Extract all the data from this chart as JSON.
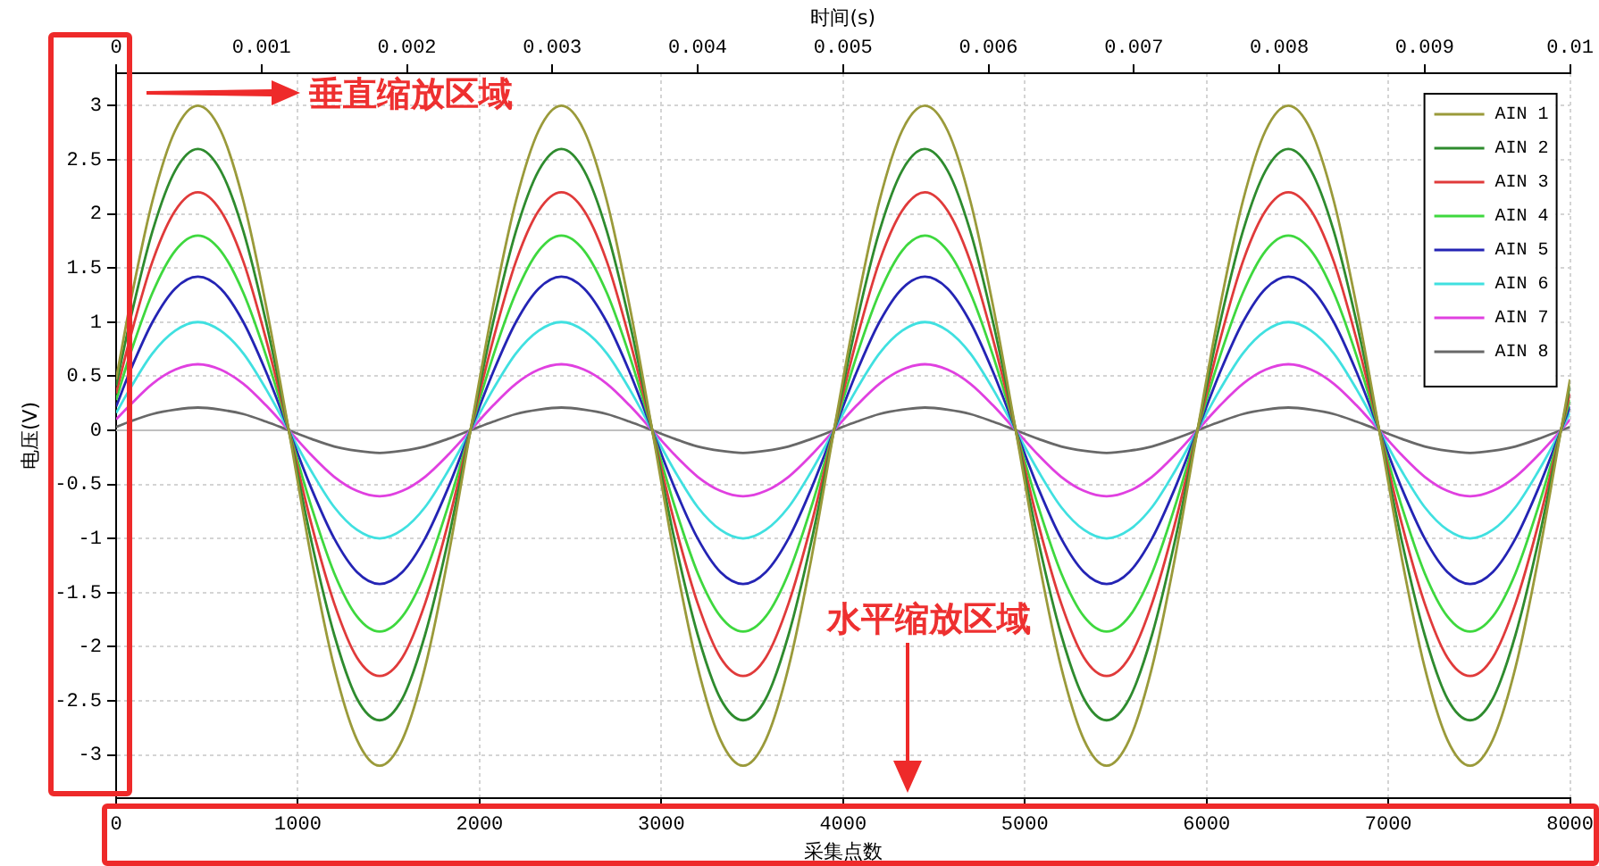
{
  "chart_data": {
    "type": "line",
    "x2label": "时间(s)",
    "xlabel": "采集点数",
    "ylabel": "电压(V)",
    "annotations": [
      "垂直缩放区域",
      "水平缩放区域"
    ],
    "x": [
      0,
      75,
      200,
      325,
      450,
      575,
      700,
      825,
      950,
      1075,
      1200,
      1325,
      1450,
      1575,
      1700,
      1825,
      1950,
      2075,
      2200,
      2325,
      2450,
      2575,
      2700,
      2825,
      2950,
      3075,
      3200,
      3325,
      3450,
      3575,
      3700,
      3825,
      3950,
      4075,
      4200,
      4325,
      4450,
      4575,
      4700,
      4825,
      4950,
      5075,
      5200,
      5325,
      5450,
      5575,
      5700,
      5825,
      5950,
      6075,
      6200,
      6325,
      6450,
      6575,
      6700,
      6825,
      6950,
      7075,
      7200,
      7325,
      7450,
      7575,
      7700,
      7825,
      7950,
      8000
    ],
    "series": [
      {
        "name": "AIN 1",
        "color": "#9a9a3a",
        "values": [
          0.47,
          1.15,
          2.12,
          2.77,
          3,
          2.77,
          2.12,
          1.15,
          0,
          -1.19,
          -2.19,
          -2.86,
          -3.1,
          -2.86,
          -2.19,
          -1.19,
          0,
          1.15,
          2.12,
          2.77,
          3,
          2.77,
          2.12,
          1.15,
          0,
          -1.19,
          -2.19,
          -2.86,
          -3.1,
          -2.86,
          -2.19,
          -1.19,
          0,
          1.15,
          2.12,
          2.77,
          3,
          2.77,
          2.12,
          1.15,
          0,
          -1.19,
          -2.19,
          -2.86,
          -3.1,
          -2.86,
          -2.19,
          -1.19,
          0,
          1.15,
          2.12,
          2.77,
          3,
          2.77,
          2.12,
          1.15,
          0,
          -1.19,
          -2.19,
          -2.86,
          -3.1,
          -2.86,
          -2.19,
          -1.19,
          0,
          0.47
        ]
      },
      {
        "name": "AIN 2",
        "color": "#2e8b2e",
        "values": [
          0.41,
          1,
          1.84,
          2.4,
          2.6,
          2.4,
          1.84,
          1,
          0,
          -1.03,
          -1.89,
          -2.48,
          -2.68,
          -2.48,
          -1.89,
          -1.03,
          0,
          1,
          1.84,
          2.4,
          2.6,
          2.4,
          1.84,
          1,
          0,
          -1.03,
          -1.89,
          -2.48,
          -2.68,
          -2.48,
          -1.89,
          -1.03,
          0,
          1,
          1.84,
          2.4,
          2.6,
          2.4,
          1.84,
          1,
          0,
          -1.03,
          -1.89,
          -2.48,
          -2.68,
          -2.48,
          -1.89,
          -1.03,
          0,
          1,
          1.84,
          2.4,
          2.6,
          2.4,
          1.84,
          1,
          0,
          -1.03,
          -1.89,
          -2.48,
          -2.68,
          -2.48,
          -1.89,
          -1.03,
          0,
          0.41
        ]
      },
      {
        "name": "AIN 3",
        "color": "#e03a3a",
        "values": [
          0.34,
          0.84,
          1.56,
          2.03,
          2.2,
          2.03,
          1.56,
          0.84,
          0,
          -0.87,
          -1.6,
          -2.1,
          -2.27,
          -2.1,
          -1.6,
          -0.87,
          0,
          0.84,
          1.56,
          2.03,
          2.2,
          2.03,
          1.56,
          0.84,
          0,
          -0.87,
          -1.6,
          -2.1,
          -2.27,
          -2.1,
          -1.6,
          -0.87,
          0,
          0.84,
          1.56,
          2.03,
          2.2,
          2.03,
          1.56,
          0.84,
          0,
          -0.87,
          -1.6,
          -2.1,
          -2.27,
          -2.1,
          -1.6,
          -0.87,
          0,
          0.84,
          1.56,
          2.03,
          2.2,
          2.03,
          1.56,
          0.84,
          0,
          -0.87,
          -1.6,
          -2.1,
          -2.27,
          -2.1,
          -1.6,
          -0.87,
          0,
          0.34
        ]
      },
      {
        "name": "AIN 4",
        "color": "#3ed83e",
        "values": [
          0.28,
          0.69,
          1.27,
          1.66,
          1.8,
          1.66,
          1.27,
          0.69,
          0,
          -0.71,
          -1.32,
          -1.72,
          -1.86,
          -1.72,
          -1.32,
          -0.71,
          0,
          0.69,
          1.27,
          1.66,
          1.8,
          1.66,
          1.27,
          0.69,
          0,
          -0.71,
          -1.32,
          -1.72,
          -1.86,
          -1.72,
          -1.32,
          -0.71,
          0,
          0.69,
          1.27,
          1.66,
          1.8,
          1.66,
          1.27,
          0.69,
          0,
          -0.71,
          -1.32,
          -1.72,
          -1.86,
          -1.72,
          -1.32,
          -0.71,
          0,
          0.69,
          1.27,
          1.66,
          1.8,
          1.66,
          1.27,
          0.69,
          0,
          -0.71,
          -1.32,
          -1.72,
          -1.86,
          -1.72,
          -1.32,
          -0.71,
          0,
          0.28
        ]
      },
      {
        "name": "AIN 5",
        "color": "#2424b4",
        "values": [
          0.22,
          0.54,
          1,
          1.31,
          1.42,
          1.31,
          1,
          0.54,
          0,
          -0.54,
          -1,
          -1.31,
          -1.42,
          -1.31,
          -1,
          -0.54,
          0,
          0.54,
          1,
          1.31,
          1.42,
          1.31,
          1,
          0.54,
          0,
          -0.54,
          -1,
          -1.31,
          -1.42,
          -1.31,
          -1,
          -0.54,
          0,
          0.54,
          1,
          1.31,
          1.42,
          1.31,
          1,
          0.54,
          0,
          -0.54,
          -1,
          -1.31,
          -1.42,
          -1.31,
          -1,
          -0.54,
          0,
          0.54,
          1,
          1.31,
          1.42,
          1.31,
          1,
          0.54,
          0,
          -0.54,
          -1,
          -1.31,
          -1.42,
          -1.31,
          -1,
          -0.54,
          0,
          0.22
        ]
      },
      {
        "name": "AIN 6",
        "color": "#40e0e0",
        "values": [
          0.16,
          0.38,
          0.71,
          0.92,
          1,
          0.92,
          0.71,
          0.38,
          0,
          -0.38,
          -0.71,
          -0.92,
          -1,
          -0.92,
          -0.71,
          -0.38,
          0,
          0.38,
          0.71,
          0.92,
          1,
          0.92,
          0.71,
          0.38,
          0,
          -0.38,
          -0.71,
          -0.92,
          -1,
          -0.92,
          -0.71,
          -0.38,
          0,
          0.38,
          0.71,
          0.92,
          1,
          0.92,
          0.71,
          0.38,
          0,
          -0.38,
          -0.71,
          -0.92,
          -1,
          -0.92,
          -0.71,
          -0.38,
          0,
          0.38,
          0.71,
          0.92,
          1,
          0.92,
          0.71,
          0.38,
          0,
          -0.38,
          -0.71,
          -0.92,
          -1,
          -0.92,
          -0.71,
          -0.38,
          0,
          0.16
        ]
      },
      {
        "name": "AIN 7",
        "color": "#e040e0",
        "values": [
          0.1,
          0.23,
          0.43,
          0.56,
          0.61,
          0.56,
          0.43,
          0.23,
          0,
          -0.23,
          -0.43,
          -0.56,
          -0.61,
          -0.56,
          -0.43,
          -0.23,
          0,
          0.23,
          0.43,
          0.56,
          0.61,
          0.56,
          0.43,
          0.23,
          0,
          -0.23,
          -0.43,
          -0.56,
          -0.61,
          -0.56,
          -0.43,
          -0.23,
          0,
          0.23,
          0.43,
          0.56,
          0.61,
          0.56,
          0.43,
          0.23,
          0,
          -0.23,
          -0.43,
          -0.56,
          -0.61,
          -0.56,
          -0.43,
          -0.23,
          0,
          0.23,
          0.43,
          0.56,
          0.61,
          0.56,
          0.43,
          0.23,
          0,
          -0.23,
          -0.43,
          -0.56,
          -0.61,
          -0.56,
          -0.43,
          -0.23,
          0,
          0.1
        ]
      },
      {
        "name": "AIN 8",
        "color": "#686868",
        "values": [
          0.03,
          0.08,
          0.15,
          0.19,
          0.21,
          0.19,
          0.15,
          0.08,
          0,
          -0.08,
          -0.15,
          -0.19,
          -0.21,
          -0.19,
          -0.15,
          -0.08,
          0,
          0.08,
          0.15,
          0.19,
          0.21,
          0.19,
          0.15,
          0.08,
          0,
          -0.08,
          -0.15,
          -0.19,
          -0.21,
          -0.19,
          -0.15,
          -0.08,
          0,
          0.08,
          0.15,
          0.19,
          0.21,
          0.19,
          0.15,
          0.08,
          0,
          -0.08,
          -0.15,
          -0.19,
          -0.21,
          -0.19,
          -0.15,
          -0.08,
          0,
          0.08,
          0.15,
          0.19,
          0.21,
          0.19,
          0.15,
          0.08,
          0,
          -0.08,
          -0.15,
          -0.19,
          -0.21,
          -0.19,
          -0.15,
          -0.08,
          0,
          0.03
        ]
      }
    ],
    "xlim": [
      0,
      8000
    ],
    "xticks": [
      0,
      1000,
      2000,
      3000,
      4000,
      5000,
      6000,
      7000,
      8000
    ],
    "x2lim": [
      0,
      0.01
    ],
    "x2ticks": [
      0,
      0.001,
      0.002,
      0.003,
      0.004,
      0.005,
      0.006,
      0.007,
      0.008,
      0.009,
      0.01
    ],
    "ylim": [
      -3.4,
      3.3
    ],
    "yticks": [
      -3,
      -2.5,
      -2,
      -1.5,
      -1,
      -0.5,
      0,
      0.5,
      1,
      1.5,
      2,
      2.5,
      3
    ],
    "ref_lines": [
      {
        "axis": "y",
        "value": 0,
        "color": "#c0c0c0"
      }
    ],
    "grid": true,
    "legend": "top right",
    "marker": "none",
    "line_style": "solid"
  }
}
